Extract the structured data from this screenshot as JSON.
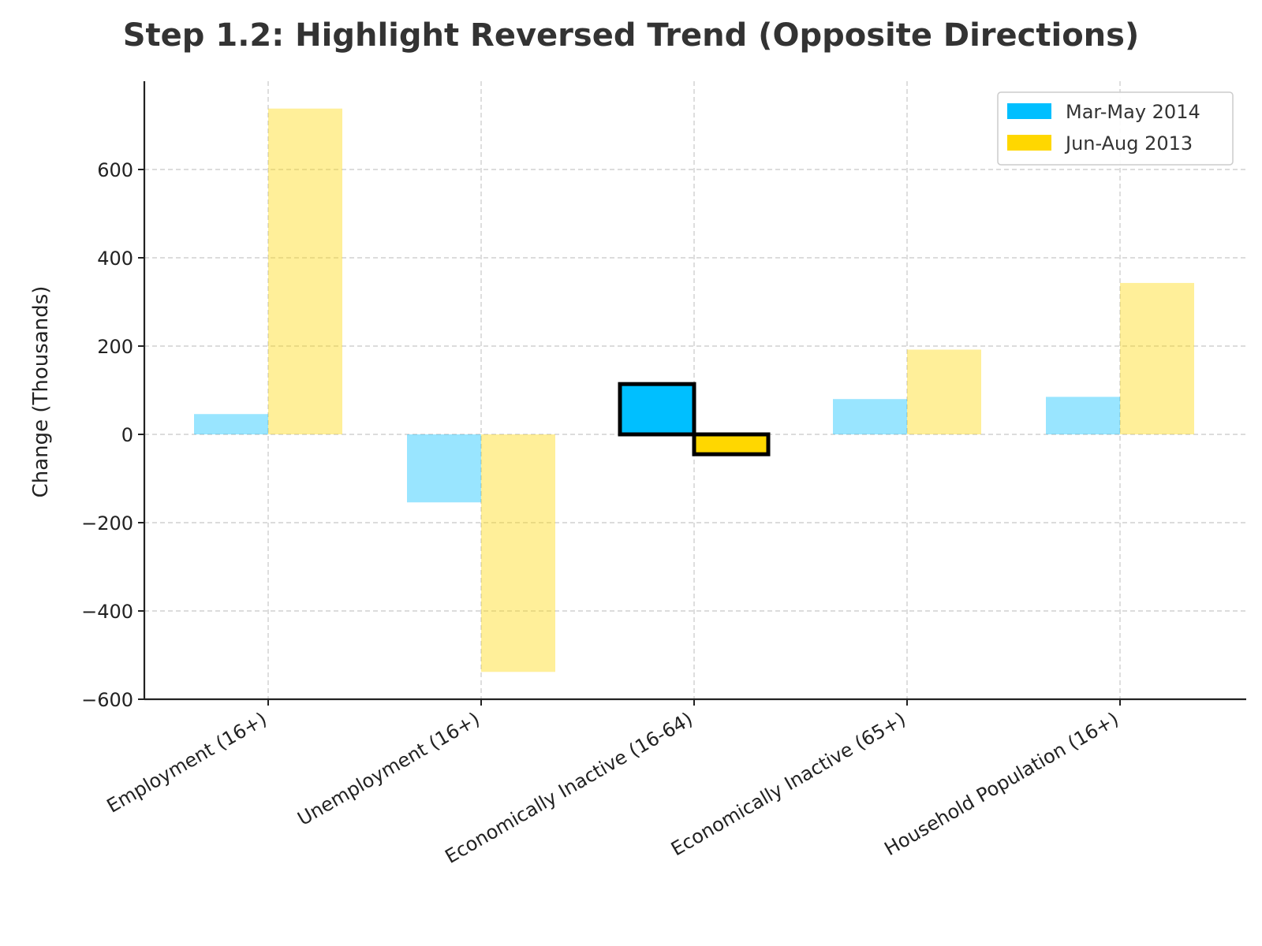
{
  "chart_data": {
    "type": "bar",
    "title": "Step 1.2: Highlight Reversed Trend (Opposite Directions)",
    "xlabel": "",
    "ylabel": "Change (Thousands)",
    "ylim": [
      -600,
      800
    ],
    "yticks": [
      -600,
      -400,
      -200,
      0,
      200,
      400,
      600
    ],
    "grid": true,
    "legend_position": "top-right",
    "categories": [
      "Employment (16+)",
      "Unemployment (16+)",
      "Economically Inactive (16-64)",
      "Economically Inactive (65+)",
      "Household Population (16+)"
    ],
    "series": [
      {
        "name": "Mar-May 2014",
        "color": "#00BFFF",
        "values": [
          46,
          -154,
          114,
          80,
          85
        ]
      },
      {
        "name": "Jun-Aug 2013",
        "color": "#FFD700",
        "values": [
          738,
          -538,
          -45,
          192,
          343
        ]
      }
    ],
    "highlight_category_index": 2,
    "dimmed_opacity": 0.4
  }
}
